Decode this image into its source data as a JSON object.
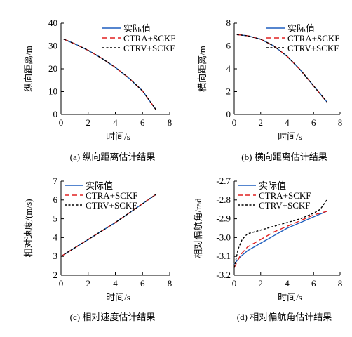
{
  "legend": {
    "actual": "实际值",
    "ctra": "CTRA+SCKF",
    "ctrv": "CTRV+SCKF"
  },
  "colors": {
    "actual": "#1f5fbf",
    "ctra": "#e02020",
    "ctrv": "#000000"
  },
  "chart_data": [
    {
      "id": "a",
      "type": "line",
      "caption": "(a) 纵向距离估计结果",
      "xlabel": "时间/s",
      "ylabel": "纵向距离/m",
      "xlim": [
        0,
        8
      ],
      "ylim": [
        0,
        40
      ],
      "xticks": [
        0,
        2,
        4,
        6,
        8
      ],
      "yticks": [
        0,
        10,
        20,
        30,
        40
      ],
      "legend_position": "top-right",
      "series": [
        {
          "name": "实际值",
          "x": [
            0.2,
            1,
            2,
            3,
            4,
            5,
            6,
            7
          ],
          "y": [
            33,
            31.0,
            28.1,
            24.6,
            20.6,
            15.9,
            10.3,
            2
          ]
        },
        {
          "name": "CTRA+SCKF",
          "x": [
            0.2,
            1,
            2,
            3,
            4,
            5,
            6,
            7
          ],
          "y": [
            33,
            31.0,
            28.1,
            24.6,
            20.6,
            15.9,
            10.3,
            2
          ]
        },
        {
          "name": "CTRV+SCKF",
          "x": [
            0.2,
            1,
            2,
            3,
            4,
            5,
            6,
            7
          ],
          "y": [
            33,
            31.0,
            28.1,
            24.6,
            20.6,
            15.9,
            10.3,
            2
          ]
        }
      ]
    },
    {
      "id": "b",
      "type": "line",
      "caption": "(b) 横向距离估计结果",
      "xlabel": "时间/s",
      "ylabel": "横向距离/m",
      "xlim": [
        0,
        8
      ],
      "ylim": [
        0,
        8
      ],
      "xticks": [
        0,
        2,
        4,
        6,
        8
      ],
      "yticks": [
        0,
        2,
        4,
        6,
        8
      ],
      "legend_position": "top-right",
      "series": [
        {
          "name": "实际值",
          "x": [
            0.2,
            1,
            2,
            3,
            4,
            5,
            6,
            7
          ],
          "y": [
            7,
            6.9,
            6.6,
            6.0,
            5.1,
            3.9,
            2.5,
            1.1
          ]
        },
        {
          "name": "CTRA+SCKF",
          "x": [
            0.2,
            1,
            2,
            3,
            4,
            5,
            6,
            7
          ],
          "y": [
            7,
            6.9,
            6.6,
            6.0,
            5.1,
            3.9,
            2.5,
            1.1
          ]
        },
        {
          "name": "CTRV+SCKF",
          "x": [
            0.2,
            1,
            2,
            3,
            4,
            5,
            6,
            7
          ],
          "y": [
            7,
            6.9,
            6.6,
            6.0,
            5.1,
            3.9,
            2.5,
            1.1
          ]
        }
      ]
    },
    {
      "id": "c",
      "type": "line",
      "caption": "(c) 相对速度估计结果",
      "xlabel": "时间/s",
      "ylabel": "相对速度/(m/s)",
      "xlim": [
        0,
        8
      ],
      "ylim": [
        2,
        7
      ],
      "xticks": [
        0,
        2,
        4,
        6,
        8
      ],
      "yticks": [
        2,
        3,
        4,
        5,
        6,
        7
      ],
      "legend_position": "top-left",
      "series": [
        {
          "name": "实际值",
          "x": [
            0,
            1,
            2,
            3,
            4,
            5,
            6,
            7
          ],
          "y": [
            3.0,
            3.45,
            3.9,
            4.35,
            4.8,
            5.3,
            5.8,
            6.3
          ]
        },
        {
          "name": "CTRA+SCKF",
          "x": [
            0,
            1,
            2,
            3,
            4,
            5,
            6,
            7
          ],
          "y": [
            3.0,
            3.45,
            3.9,
            4.35,
            4.8,
            5.3,
            5.8,
            6.3
          ]
        },
        {
          "name": "CTRV+SCKF",
          "x": [
            0,
            1,
            2,
            3,
            4,
            5,
            6,
            7
          ],
          "y": [
            3.0,
            3.45,
            3.9,
            4.35,
            4.8,
            5.3,
            5.8,
            6.3
          ]
        }
      ]
    },
    {
      "id": "d",
      "type": "line",
      "caption": "(d) 相对偏航角估计结果",
      "xlabel": "时间/s",
      "ylabel": "相对偏航角/rad",
      "xlim": [
        0,
        8
      ],
      "ylim": [
        -3.2,
        -2.7
      ],
      "xticks": [
        0,
        2,
        4,
        6,
        8
      ],
      "yticks": [
        -3.2,
        -3.1,
        -3.0,
        -2.9,
        -2.8,
        -2.7
      ],
      "ytick_labels": [
        "-3.2",
        "-3.1",
        "-3.0",
        "-2.9",
        "-2.8",
        "-2.7"
      ],
      "legend_position": "top-left",
      "series": [
        {
          "name": "实际值",
          "x": [
            0,
            0.5,
            1,
            2,
            3,
            4,
            5,
            6,
            7
          ],
          "y": [
            -3.14,
            -3.1,
            -3.07,
            -3.03,
            -2.99,
            -2.95,
            -2.92,
            -2.89,
            -2.86
          ]
        },
        {
          "name": "CTRA+SCKF",
          "x": [
            0,
            0.5,
            1,
            2,
            3,
            4,
            5,
            6,
            7
          ],
          "y": [
            -3.16,
            -3.09,
            -3.05,
            -3.01,
            -2.97,
            -2.94,
            -2.91,
            -2.88,
            -2.86
          ]
        },
        {
          "name": "CTRV+SCKF",
          "x": [
            0,
            0.3,
            0.6,
            1,
            1.5,
            2,
            3,
            4,
            5,
            6,
            6.5,
            7
          ],
          "y": [
            -3.16,
            -3.06,
            -3.01,
            -2.98,
            -2.97,
            -2.96,
            -2.94,
            -2.92,
            -2.9,
            -2.87,
            -2.85,
            -2.8
          ]
        }
      ]
    }
  ]
}
